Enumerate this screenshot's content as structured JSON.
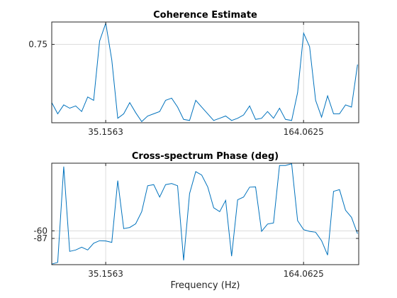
{
  "chart_data": [
    {
      "type": "line",
      "title": "Coherence Estimate",
      "xlabel": "",
      "ylabel": "",
      "xlim": [
        0,
        200
      ],
      "ylim": [
        0.4,
        0.85
      ],
      "xticks": [
        35.1563,
        164.0625
      ],
      "xtick_labels": [
        "35.1563",
        "164.0625"
      ],
      "yticks": [
        0.75
      ],
      "ytick_labels": [
        "0.75"
      ],
      "grid": true,
      "color": "#0072bd",
      "series": [
        {
          "x": [
            0,
            3.9,
            7.8,
            11.7,
            15.6,
            19.5,
            23.4,
            27.3,
            31.2,
            35.2,
            39.1,
            43.0,
            46.9,
            50.8,
            54.7,
            58.6,
            62.5,
            66.4,
            70.3,
            74.2,
            78.1,
            82.0,
            85.9,
            89.8,
            93.8,
            97.7,
            101.6,
            105.5,
            109.4,
            113.3,
            117.2,
            121.1,
            125.0,
            128.9,
            132.8,
            136.7,
            140.6,
            144.5,
            148.4,
            152.3,
            156.3,
            160.2,
            164.1,
            168.0,
            171.9,
            175.8,
            179.7,
            183.6,
            187.5,
            191.4,
            195.3,
            199.2
          ],
          "y": [
            0.49,
            0.44,
            0.48,
            0.465,
            0.475,
            0.45,
            0.515,
            0.5,
            0.765,
            0.845,
            0.68,
            0.42,
            0.44,
            0.49,
            0.445,
            0.405,
            0.43,
            0.44,
            0.45,
            0.5,
            0.51,
            0.47,
            0.415,
            0.41,
            0.5,
            0.47,
            0.44,
            0.41,
            0.42,
            0.43,
            0.41,
            0.42,
            0.435,
            0.475,
            0.415,
            0.42,
            0.45,
            0.42,
            0.465,
            0.415,
            0.41,
            0.535,
            0.8,
            0.74,
            0.5,
            0.425,
            0.52,
            0.44,
            0.44,
            0.48,
            0.47,
            0.66
          ]
        }
      ]
    },
    {
      "type": "line",
      "title": "Cross-spectrum Phase (deg)",
      "xlabel": "Frequency (Hz)",
      "ylabel": "",
      "xlim": [
        0,
        200
      ],
      "ylim": [
        -180,
        180
      ],
      "xticks": [
        35.1563,
        164.0625
      ],
      "xtick_labels": [
        "35.1563",
        "164.0625"
      ],
      "yticks": [
        -60,
        -87
      ],
      "ytick_labels": [
        "-60",
        "-87"
      ],
      "grid": true,
      "color": "#0072bd",
      "series": [
        {
          "x": [
            0,
            3.9,
            7.8,
            11.7,
            15.6,
            19.5,
            23.4,
            27.3,
            31.2,
            35.2,
            39.1,
            43.0,
            46.9,
            50.8,
            54.7,
            58.6,
            62.5,
            66.4,
            70.3,
            74.2,
            78.1,
            82.0,
            85.9,
            89.8,
            93.8,
            97.7,
            101.6,
            105.5,
            109.4,
            113.3,
            117.2,
            121.1,
            125.0,
            128.9,
            132.8,
            136.7,
            140.6,
            144.5,
            148.4,
            152.3,
            156.3,
            160.2,
            164.1,
            168.0,
            171.9,
            175.8,
            179.7,
            183.6,
            187.5,
            191.4,
            195.3,
            199.2
          ],
          "y": [
            -178,
            -172,
            168,
            -133,
            -128,
            -118,
            -128,
            -104,
            -95,
            -96,
            -101,
            118,
            -52,
            -48,
            -35,
            8,
            100,
            104,
            60,
            104,
            108,
            100,
            -165,
            72,
            150,
            138,
            96,
            22,
            8,
            48,
            -150,
            50,
            60,
            95,
            96,
            -62,
            -36,
            -32,
            172,
            172,
            178,
            -24,
            -56,
            -62,
            -65,
            -95,
            -146,
            80,
            86,
            13,
            -12,
            -70
          ]
        }
      ]
    }
  ]
}
